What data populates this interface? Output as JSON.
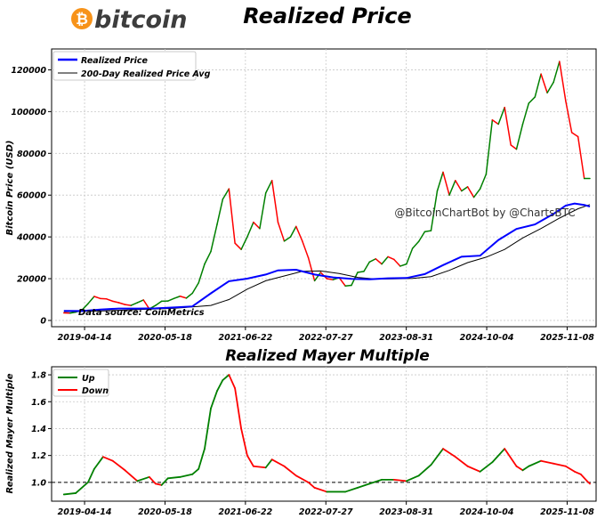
{
  "header": {
    "logo_symbol": "₿",
    "logo_text": "bitcoin",
    "logo_color": "#f7931a",
    "title": "Realized Price"
  },
  "watermark": "@BitcoinChartBot by @ChartsBTC",
  "data_source": "Data source: CoinMetrics",
  "colors": {
    "up": "#008000",
    "down": "#ff0000",
    "realized_line": "#0000ff",
    "avg_line": "#000000",
    "grid": "#c8c8c8"
  },
  "chart_data": [
    {
      "id": "realized_price",
      "type": "line",
      "title": "Realized Price",
      "xlabel": "",
      "ylabel": "Bitcoin Price (USD)",
      "x_ticks": [
        "2019-04-14",
        "2020-05-18",
        "2021-06-22",
        "2022-07-27",
        "2023-08-31",
        "2024-10-04",
        "2025-11-08"
      ],
      "x_range": [
        "2018-11-01",
        "2026-04-01"
      ],
      "ylim": [
        -3000,
        130000
      ],
      "y_ticks": [
        0,
        20000,
        40000,
        60000,
        80000,
        100000,
        120000
      ],
      "y_tick_labels": [
        "0",
        "20000",
        "40000",
        "60000",
        "80000",
        "100000",
        "120000"
      ],
      "grid": true,
      "legend_position": "top-left",
      "legend": [
        "Realized Price",
        "200-Day Realized Price Avg"
      ],
      "series": [
        {
          "name": "Realized Price",
          "points": [
            [
              "2019-01-01",
              4600
            ],
            [
              "2019-04-01",
              4500
            ],
            [
              "2019-07-01",
              5200
            ],
            [
              "2019-10-01",
              5700
            ],
            [
              "2020-01-01",
              5700
            ],
            [
              "2020-04-01",
              5800
            ],
            [
              "2020-07-01",
              6200
            ],
            [
              "2020-10-01",
              6700
            ],
            [
              "2021-01-01",
              13000
            ],
            [
              "2021-04-01",
              18800
            ],
            [
              "2021-07-01",
              20000
            ],
            [
              "2021-10-01",
              22000
            ],
            [
              "2021-12-01",
              24000
            ],
            [
              "2022-03-01",
              24300
            ],
            [
              "2022-06-01",
              22000
            ],
            [
              "2022-09-01",
              20600
            ],
            [
              "2022-12-01",
              19900
            ],
            [
              "2023-03-01",
              19700
            ],
            [
              "2023-06-01",
              20200
            ],
            [
              "2023-09-01",
              20300
            ],
            [
              "2023-12-01",
              22200
            ],
            [
              "2024-03-01",
              26500
            ],
            [
              "2024-06-01",
              30500
            ],
            [
              "2024-09-01",
              31000
            ],
            [
              "2024-12-01",
              38500
            ],
            [
              "2025-03-01",
              43800
            ],
            [
              "2025-06-01",
              46000
            ],
            [
              "2025-09-01",
              51000
            ],
            [
              "2025-11-01",
              55000
            ],
            [
              "2025-12-15",
              56000
            ],
            [
              "2026-02-01",
              55300
            ],
            [
              "2026-03-01",
              54500
            ]
          ]
        },
        {
          "name": "200-Day Realized Price Avg",
          "points": [
            [
              "2019-01-01",
              4200
            ],
            [
              "2019-07-01",
              4500
            ],
            [
              "2020-01-01",
              5200
            ],
            [
              "2020-07-01",
              5800
            ],
            [
              "2021-01-01",
              7200
            ],
            [
              "2021-04-01",
              10000
            ],
            [
              "2021-07-01",
              15000
            ],
            [
              "2021-10-01",
              19000
            ],
            [
              "2022-01-01",
              21300
            ],
            [
              "2022-04-01",
              23500
            ],
            [
              "2022-07-01",
              23700
            ],
            [
              "2022-10-01",
              22500
            ],
            [
              "2023-01-01",
              20600
            ],
            [
              "2023-04-01",
              19800
            ],
            [
              "2023-07-01",
              19900
            ],
            [
              "2023-10-01",
              20100
            ],
            [
              "2024-01-01",
              21000
            ],
            [
              "2024-04-01",
              24000
            ],
            [
              "2024-07-01",
              27700
            ],
            [
              "2024-10-01",
              30300
            ],
            [
              "2025-01-01",
              34000
            ],
            [
              "2025-04-01",
              39500
            ],
            [
              "2025-07-01",
              44000
            ],
            [
              "2025-10-01",
              49000
            ],
            [
              "2026-01-01",
              53500
            ],
            [
              "2026-03-01",
              55500
            ]
          ]
        },
        {
          "name": "Bitcoin Price",
          "colored_by_direction": true,
          "points": [
            [
              "2019-01-01",
              3600
            ],
            [
              "2019-02-01",
              3500
            ],
            [
              "2019-03-01",
              4000
            ],
            [
              "2019-04-01",
              5000
            ],
            [
              "2019-05-01",
              8000
            ],
            [
              "2019-06-01",
              11500
            ],
            [
              "2019-07-01",
              10500
            ],
            [
              "2019-08-01",
              10300
            ],
            [
              "2019-09-01",
              9200
            ],
            [
              "2019-10-01",
              8500
            ],
            [
              "2019-11-01",
              7600
            ],
            [
              "2019-12-01",
              7200
            ],
            [
              "2020-01-01",
              8500
            ],
            [
              "2020-02-01",
              9800
            ],
            [
              "2020-03-01",
              5500
            ],
            [
              "2020-04-01",
              7200
            ],
            [
              "2020-05-01",
              9200
            ],
            [
              "2020-06-01",
              9300
            ],
            [
              "2020-07-01",
              10500
            ],
            [
              "2020-08-01",
              11600
            ],
            [
              "2020-09-01",
              10700
            ],
            [
              "2020-10-01",
              13000
            ],
            [
              "2020-11-01",
              18000
            ],
            [
              "2020-12-01",
              27000
            ],
            [
              "2021-01-01",
              33000
            ],
            [
              "2021-02-01",
              46000
            ],
            [
              "2021-03-01",
              58000
            ],
            [
              "2021-04-01",
              63000
            ],
            [
              "2021-05-01",
              37000
            ],
            [
              "2021-06-01",
              34000
            ],
            [
              "2021-07-01",
              40000
            ],
            [
              "2021-08-01",
              47000
            ],
            [
              "2021-09-01",
              44000
            ],
            [
              "2021-10-01",
              61000
            ],
            [
              "2021-11-01",
              67000
            ],
            [
              "2021-12-01",
              47000
            ],
            [
              "2022-01-01",
              38000
            ],
            [
              "2022-02-01",
              40000
            ],
            [
              "2022-03-01",
              45000
            ],
            [
              "2022-04-01",
              38000
            ],
            [
              "2022-05-01",
              30000
            ],
            [
              "2022-06-01",
              19000
            ],
            [
              "2022-07-01",
              23000
            ],
            [
              "2022-08-01",
              20000
            ],
            [
              "2022-09-01",
              19500
            ],
            [
              "2022-10-01",
              20500
            ],
            [
              "2022-11-01",
              16500
            ],
            [
              "2022-12-01",
              16800
            ],
            [
              "2023-01-01",
              23000
            ],
            [
              "2023-02-01",
              23500
            ],
            [
              "2023-03-01",
              28000
            ],
            [
              "2023-04-01",
              29500
            ],
            [
              "2023-05-01",
              27000
            ],
            [
              "2023-06-01",
              30500
            ],
            [
              "2023-07-01",
              29200
            ],
            [
              "2023-08-01",
              26000
            ],
            [
              "2023-09-01",
              27000
            ],
            [
              "2023-10-01",
              34500
            ],
            [
              "2023-11-01",
              37800
            ],
            [
              "2023-12-01",
              42500
            ],
            [
              "2024-01-01",
              43000
            ],
            [
              "2024-02-01",
              62000
            ],
            [
              "2024-03-01",
              71000
            ],
            [
              "2024-04-01",
              60000
            ],
            [
              "2024-05-01",
              67000
            ],
            [
              "2024-06-01",
              62000
            ],
            [
              "2024-07-01",
              64000
            ],
            [
              "2024-08-01",
              59000
            ],
            [
              "2024-09-01",
              63000
            ],
            [
              "2024-10-01",
              70000
            ],
            [
              "2024-11-01",
              96000
            ],
            [
              "2024-12-01",
              94000
            ],
            [
              "2025-01-01",
              102000
            ],
            [
              "2025-02-01",
              84000
            ],
            [
              "2025-03-01",
              82000
            ],
            [
              "2025-04-01",
              94000
            ],
            [
              "2025-05-01",
              104000
            ],
            [
              "2025-06-01",
              107000
            ],
            [
              "2025-07-01",
              118000
            ],
            [
              "2025-08-01",
              109000
            ],
            [
              "2025-09-01",
              114000
            ],
            [
              "2025-10-01",
              124000
            ],
            [
              "2025-11-01",
              105000
            ],
            [
              "2025-12-01",
              90000
            ],
            [
              "2026-01-01",
              88000
            ],
            [
              "2026-02-01",
              68000
            ],
            [
              "2026-03-01",
              68000
            ]
          ]
        }
      ]
    },
    {
      "id": "mayer_multiple",
      "type": "line",
      "title": "Realized Mayer Multiple",
      "xlabel": "",
      "ylabel": "Realized Mayer Multiple",
      "x_ticks": [
        "2019-04-14",
        "2020-05-18",
        "2021-06-22",
        "2022-07-27",
        "2023-08-31",
        "2024-10-04",
        "2025-11-08"
      ],
      "x_range": [
        "2018-11-01",
        "2026-04-01"
      ],
      "ylim": [
        0.86,
        1.86
      ],
      "y_ticks": [
        1.0,
        1.2,
        1.4,
        1.6,
        1.8
      ],
      "y_tick_labels": [
        "1.0",
        "1.2",
        "1.4",
        "1.6",
        "1.8"
      ],
      "reference_line": 1.0,
      "grid": true,
      "legend_position": "top-left",
      "legend": [
        "Up",
        "Down"
      ],
      "series": [
        {
          "name": "Realized Mayer Multiple",
          "colored_by_direction": true,
          "points": [
            [
              "2019-01-01",
              0.91
            ],
            [
              "2019-03-01",
              0.92
            ],
            [
              "2019-05-01",
              1.0
            ],
            [
              "2019-06-01",
              1.1
            ],
            [
              "2019-07-15",
              1.19
            ],
            [
              "2019-09-01",
              1.16
            ],
            [
              "2019-11-01",
              1.09
            ],
            [
              "2020-01-01",
              1.01
            ],
            [
              "2020-03-01",
              1.04
            ],
            [
              "2020-04-01",
              0.99
            ],
            [
              "2020-05-01",
              0.98
            ],
            [
              "2020-06-01",
              1.03
            ],
            [
              "2020-08-01",
              1.04
            ],
            [
              "2020-10-01",
              1.06
            ],
            [
              "2020-11-01",
              1.1
            ],
            [
              "2020-12-01",
              1.25
            ],
            [
              "2021-01-01",
              1.55
            ],
            [
              "2021-02-01",
              1.68
            ],
            [
              "2021-03-01",
              1.76
            ],
            [
              "2021-04-01",
              1.8
            ],
            [
              "2021-05-01",
              1.7
            ],
            [
              "2021-06-01",
              1.4
            ],
            [
              "2021-07-01",
              1.2
            ],
            [
              "2021-08-01",
              1.12
            ],
            [
              "2021-10-01",
              1.11
            ],
            [
              "2021-11-01",
              1.17
            ],
            [
              "2022-01-01",
              1.12
            ],
            [
              "2022-03-01",
              1.05
            ],
            [
              "2022-05-01",
              1.0
            ],
            [
              "2022-06-01",
              0.96
            ],
            [
              "2022-08-01",
              0.93
            ],
            [
              "2022-11-01",
              0.93
            ],
            [
              "2023-01-01",
              0.96
            ],
            [
              "2023-03-01",
              0.99
            ],
            [
              "2023-05-01",
              1.02
            ],
            [
              "2023-07-01",
              1.02
            ],
            [
              "2023-09-01",
              1.01
            ],
            [
              "2023-11-01",
              1.05
            ],
            [
              "2024-01-01",
              1.13
            ],
            [
              "2024-03-01",
              1.25
            ],
            [
              "2024-05-01",
              1.19
            ],
            [
              "2024-07-01",
              1.12
            ],
            [
              "2024-09-01",
              1.08
            ],
            [
              "2024-11-01",
              1.15
            ],
            [
              "2025-01-01",
              1.25
            ],
            [
              "2025-03-01",
              1.12
            ],
            [
              "2025-04-01",
              1.09
            ],
            [
              "2025-05-01",
              1.12
            ],
            [
              "2025-07-01",
              1.16
            ],
            [
              "2025-09-01",
              1.14
            ],
            [
              "2025-11-01",
              1.12
            ],
            [
              "2025-12-15",
              1.08
            ],
            [
              "2026-01-15",
              1.06
            ],
            [
              "2026-02-15",
              1.01
            ],
            [
              "2026-03-01",
              0.99
            ]
          ]
        }
      ]
    }
  ]
}
